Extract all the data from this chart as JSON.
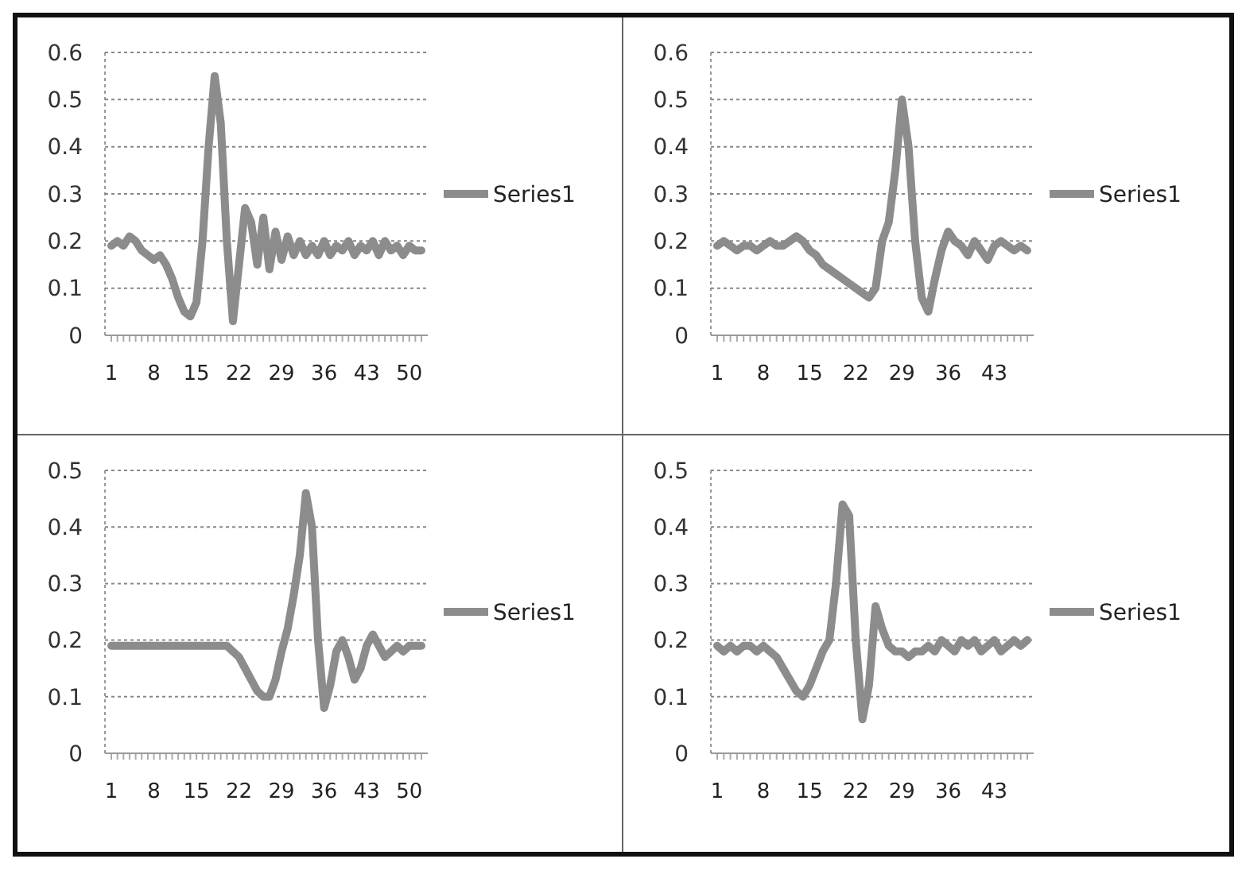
{
  "chart_data": [
    {
      "type": "line",
      "categories": [
        "1",
        null,
        null,
        null,
        null,
        null,
        null,
        "8",
        null,
        null,
        null,
        null,
        null,
        null,
        "15",
        null,
        null,
        null,
        null,
        null,
        null,
        "22",
        null,
        null,
        null,
        null,
        null,
        null,
        "29",
        null,
        null,
        null,
        null,
        null,
        null,
        "36",
        null,
        null,
        null,
        null,
        null,
        null,
        "43",
        null,
        null,
        null,
        null,
        null,
        null,
        "50",
        null,
        null
      ],
      "ylim": [
        0,
        0.6
      ],
      "yticks": [
        0,
        0.1,
        0.2,
        0.3,
        0.4,
        0.5,
        0.6
      ],
      "grid": "y",
      "legend": "right",
      "marker": "none",
      "series": [
        {
          "name": "Series1",
          "color": "#8c8c8c",
          "values": [
            0.19,
            0.2,
            0.19,
            0.21,
            0.2,
            0.18,
            0.17,
            0.16,
            0.17,
            0.15,
            0.12,
            0.08,
            0.05,
            0.04,
            0.07,
            0.2,
            0.4,
            0.55,
            0.45,
            0.2,
            0.03,
            0.15,
            0.27,
            0.24,
            0.15,
            0.25,
            0.14,
            0.22,
            0.16,
            0.21,
            0.17,
            0.2,
            0.17,
            0.19,
            0.17,
            0.2,
            0.17,
            0.19,
            0.18,
            0.2,
            0.17,
            0.19,
            0.18,
            0.2,
            0.17,
            0.2,
            0.18,
            0.19,
            0.17,
            0.19,
            0.18,
            0.18
          ]
        }
      ]
    },
    {
      "type": "line",
      "categories": [
        "1",
        null,
        null,
        null,
        null,
        null,
        null,
        "8",
        null,
        null,
        null,
        null,
        null,
        null,
        "15",
        null,
        null,
        null,
        null,
        null,
        null,
        "22",
        null,
        null,
        null,
        null,
        null,
        null,
        "29",
        null,
        null,
        null,
        null,
        null,
        null,
        "36",
        null,
        null,
        null,
        null,
        null,
        null,
        "43",
        null,
        null,
        null,
        null,
        null
      ],
      "ylim": [
        0,
        0.6
      ],
      "yticks": [
        0,
        0.1,
        0.2,
        0.3,
        0.4,
        0.5,
        0.6
      ],
      "grid": "y",
      "legend": "right",
      "marker": "none",
      "series": [
        {
          "name": "Series1",
          "color": "#8c8c8c",
          "values": [
            0.19,
            0.2,
            0.19,
            0.18,
            0.19,
            0.19,
            0.18,
            0.19,
            0.2,
            0.19,
            0.19,
            0.2,
            0.21,
            0.2,
            0.18,
            0.17,
            0.15,
            0.14,
            0.13,
            0.12,
            0.11,
            0.1,
            0.09,
            0.08,
            0.1,
            0.2,
            0.24,
            0.35,
            0.5,
            0.4,
            0.2,
            0.08,
            0.05,
            0.12,
            0.18,
            0.22,
            0.2,
            0.19,
            0.17,
            0.2,
            0.18,
            0.16,
            0.19,
            0.2,
            0.19,
            0.18,
            0.19,
            0.18
          ]
        }
      ]
    },
    {
      "type": "line",
      "categories": [
        "1",
        null,
        null,
        null,
        null,
        null,
        null,
        "8",
        null,
        null,
        null,
        null,
        null,
        null,
        "15",
        null,
        null,
        null,
        null,
        null,
        null,
        "22",
        null,
        null,
        null,
        null,
        null,
        null,
        "29",
        null,
        null,
        null,
        null,
        null,
        null,
        "36",
        null,
        null,
        null,
        null,
        null,
        null,
        "43",
        null,
        null,
        null,
        null,
        null,
        null,
        "50",
        null,
        null
      ],
      "ylim": [
        0,
        0.5
      ],
      "yticks": [
        0,
        0.1,
        0.2,
        0.3,
        0.4,
        0.5
      ],
      "grid": "y",
      "legend": "right",
      "marker": "none",
      "series": [
        {
          "name": "Series1",
          "color": "#8c8c8c",
          "values": [
            0.19,
            0.19,
            0.19,
            0.19,
            0.19,
            0.19,
            0.19,
            0.19,
            0.19,
            0.19,
            0.19,
            0.19,
            0.19,
            0.19,
            0.19,
            0.19,
            0.19,
            0.19,
            0.19,
            0.19,
            0.18,
            0.17,
            0.15,
            0.13,
            0.11,
            0.1,
            0.1,
            0.13,
            0.18,
            0.22,
            0.28,
            0.35,
            0.46,
            0.4,
            0.2,
            0.08,
            0.12,
            0.18,
            0.2,
            0.17,
            0.13,
            0.15,
            0.19,
            0.21,
            0.19,
            0.17,
            0.18,
            0.19,
            0.18,
            0.19,
            0.19,
            0.19
          ]
        }
      ]
    },
    {
      "type": "line",
      "categories": [
        "1",
        null,
        null,
        null,
        null,
        null,
        null,
        "8",
        null,
        null,
        null,
        null,
        null,
        null,
        "15",
        null,
        null,
        null,
        null,
        null,
        null,
        "22",
        null,
        null,
        null,
        null,
        null,
        null,
        "29",
        null,
        null,
        null,
        null,
        null,
        null,
        "36",
        null,
        null,
        null,
        null,
        null,
        null,
        "43",
        null,
        null,
        null,
        null,
        null
      ],
      "ylim": [
        0,
        0.5
      ],
      "yticks": [
        0,
        0.1,
        0.2,
        0.3,
        0.4,
        0.5
      ],
      "grid": "y",
      "legend": "right",
      "marker": "none",
      "series": [
        {
          "name": "Series1",
          "color": "#8c8c8c",
          "values": [
            0.19,
            0.18,
            0.19,
            0.18,
            0.19,
            0.19,
            0.18,
            0.19,
            0.18,
            0.17,
            0.15,
            0.13,
            0.11,
            0.1,
            0.12,
            0.15,
            0.18,
            0.2,
            0.3,
            0.44,
            0.42,
            0.2,
            0.06,
            0.12,
            0.26,
            0.22,
            0.19,
            0.18,
            0.18,
            0.17,
            0.18,
            0.18,
            0.19,
            0.18,
            0.2,
            0.19,
            0.18,
            0.2,
            0.19,
            0.2,
            0.18,
            0.19,
            0.2,
            0.18,
            0.19,
            0.2,
            0.19,
            0.2
          ]
        }
      ]
    }
  ]
}
